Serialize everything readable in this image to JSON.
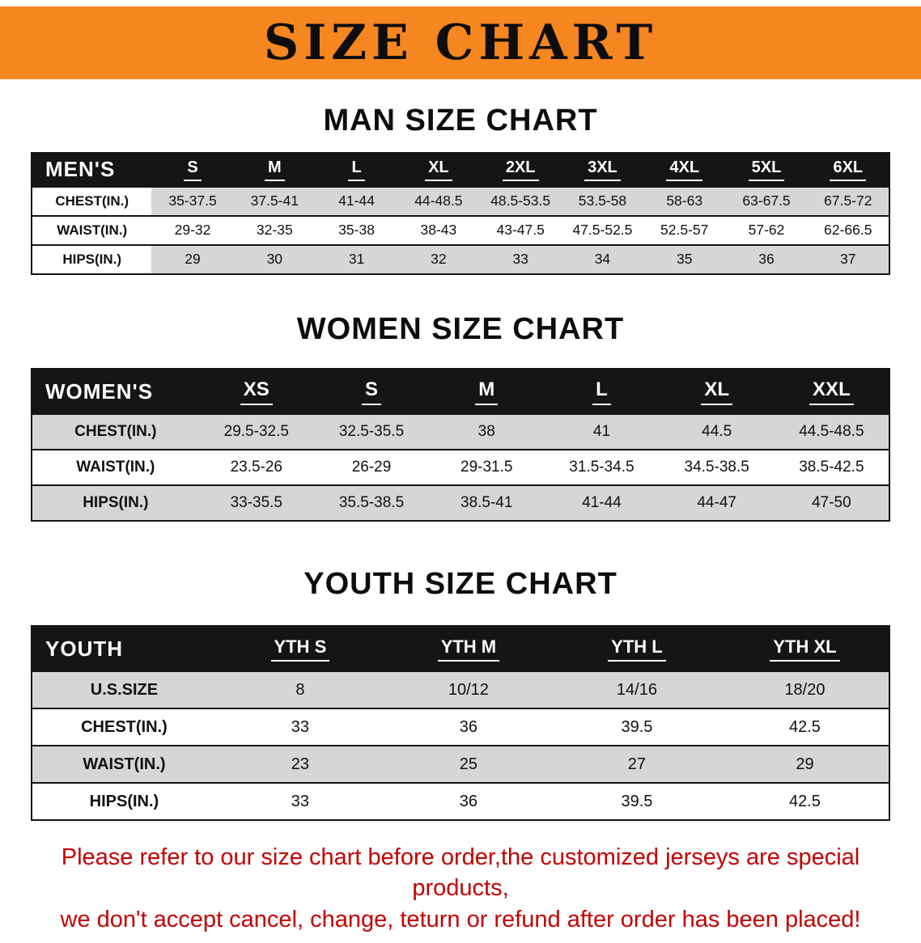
{
  "banner": {
    "title": "SIZE CHART"
  },
  "colors": {
    "banner_bg": "#f6861f",
    "table_header_bg": "#151515",
    "row_stripe": "#d6d6d6",
    "note_text": "#c40000"
  },
  "sections": [
    {
      "heading": "MAN SIZE CHART",
      "table": {
        "header": [
          "MEN'S",
          "S",
          "M",
          "L",
          "XL",
          "2XL",
          "3XL",
          "4XL",
          "5XL",
          "6XL"
        ],
        "rows": [
          [
            "CHEST(IN.)",
            "35-37.5",
            "37.5-41",
            "41-44",
            "44-48.5",
            "48.5-53.5",
            "53.5-58",
            "58-63",
            "63-67.5",
            "67.5-72"
          ],
          [
            "WAIST(IN.)",
            "29-32",
            "32-35",
            "35-38",
            "38-43",
            "43-47.5",
            "47.5-52.5",
            "52.5-57",
            "57-62",
            "62-66.5"
          ],
          [
            "HIPS(IN.)",
            "29",
            "30",
            "31",
            "32",
            "33",
            "34",
            "35",
            "36",
            "37"
          ]
        ]
      }
    },
    {
      "heading": "WOMEN SIZE CHART",
      "table": {
        "header": [
          "WOMEN'S",
          "XS",
          "S",
          "M",
          "L",
          "XL",
          "XXL"
        ],
        "rows": [
          [
            "CHEST(IN.)",
            "29.5-32.5",
            "32.5-35.5",
            "38",
            "41",
            "44.5",
            "44.5-48.5"
          ],
          [
            "WAIST(IN.)",
            "23.5-26",
            "26-29",
            "29-31.5",
            "31.5-34.5",
            "34.5-38.5",
            "38.5-42.5"
          ],
          [
            "HIPS(IN.)",
            "33-35.5",
            "35.5-38.5",
            "38.5-41",
            "41-44",
            "44-47",
            "47-50"
          ]
        ]
      }
    },
    {
      "heading": "YOUTH SIZE CHART",
      "table": {
        "header": [
          "YOUTH",
          "YTH S",
          "YTH M",
          "YTH L",
          "YTH XL"
        ],
        "rows": [
          [
            "U.S.SIZE",
            "8",
            "10/12",
            "14/16",
            "18/20"
          ],
          [
            "CHEST(IN.)",
            "33",
            "36",
            "39.5",
            "42.5"
          ],
          [
            "WAIST(IN.)",
            "23",
            "25",
            "27",
            "29"
          ],
          [
            "HIPS(IN.)",
            "33",
            "36",
            "39.5",
            "42.5"
          ]
        ]
      }
    }
  ],
  "note": {
    "line1": "Please refer to our size chart before order,the customized jerseys are special products,",
    "line2": "we don't accept cancel, change, teturn or refund after order has been placed!"
  }
}
